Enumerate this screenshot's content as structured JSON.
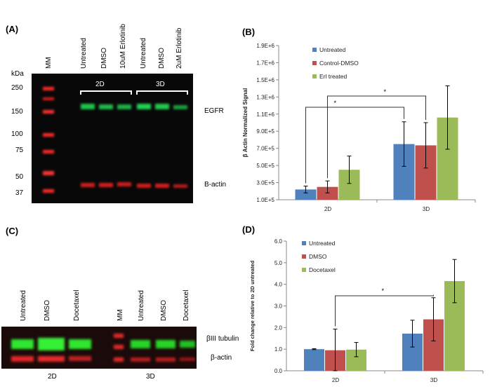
{
  "panel_a": {
    "letter": "(A)",
    "mm_label": "MM",
    "lane_labels": [
      "Untreated",
      "DMSO",
      "10uM Erlotinib",
      "Untreated",
      "DMSO",
      "2uM Erlotinib"
    ],
    "kda_label": "kDa",
    "markers": [
      "250",
      "150",
      "100",
      "75",
      "50",
      "37"
    ],
    "group_2d": "2D",
    "group_3d": "3D",
    "band_egfr": "EGFR",
    "band_actin": "B-actin"
  },
  "panel_c": {
    "letter": "(C)",
    "lane_labels": [
      "Untreated",
      "DMSO",
      "Docetaxel",
      "MM",
      "Untreated",
      "DMSO",
      "Docetaxel"
    ],
    "band_tubulin": "βIII tubulin",
    "band_actin": "β-actin",
    "group_2d": "2D",
    "group_3d": "3D"
  },
  "chart_data": [
    {
      "panel": "(B)",
      "type": "bar",
      "categories": [
        "2D",
        "3D"
      ],
      "ylabel": "β Actin Normalized Signal",
      "ylim": [
        100000,
        1900000
      ],
      "yticks": [
        "1.0E+5",
        "3.0E+5",
        "5.0E+5",
        "7.0E+5",
        "9.0E+5",
        "1.1E+6",
        "1.3E+6",
        "1.5E+6",
        "1.7E+6",
        "1.9E+6"
      ],
      "series": [
        {
          "name": "Untreated",
          "color": "#4f81bd",
          "values": [
            220000,
            750000
          ],
          "errors": [
            40000,
            260000
          ]
        },
        {
          "name": "Control-DMSO",
          "color": "#c0504d",
          "values": [
            250000,
            735000
          ],
          "errors": [
            70000,
            265000
          ]
        },
        {
          "name": "Erl treated",
          "color": "#9bbb59",
          "values": [
            450000,
            1060000
          ],
          "errors": [
            160000,
            370000
          ]
        }
      ],
      "significance": [
        "*",
        "*"
      ],
      "legend": "top-left"
    },
    {
      "panel": "(D)",
      "type": "bar",
      "categories": [
        "2D",
        "3D"
      ],
      "ylabel": "Fold change relative to 2D untreated",
      "ylim": [
        0,
        6
      ],
      "yticks": [
        "0.0",
        "1.0",
        "2.0",
        "3.0",
        "4.0",
        "5.0",
        "6.0"
      ],
      "series": [
        {
          "name": "Untreated",
          "color": "#4f81bd",
          "values": [
            1.0,
            1.72
          ],
          "errors": [
            0.02,
            0.62
          ]
        },
        {
          "name": "DMSO",
          "color": "#c0504d",
          "values": [
            0.95,
            2.38
          ],
          "errors": [
            0.98,
            1.0
          ]
        },
        {
          "name": "Docetaxel",
          "color": "#9bbb59",
          "values": [
            0.98,
            4.15
          ],
          "errors": [
            0.33,
            1.0
          ]
        }
      ],
      "significance": [
        "*"
      ],
      "legend": "top-left"
    }
  ]
}
